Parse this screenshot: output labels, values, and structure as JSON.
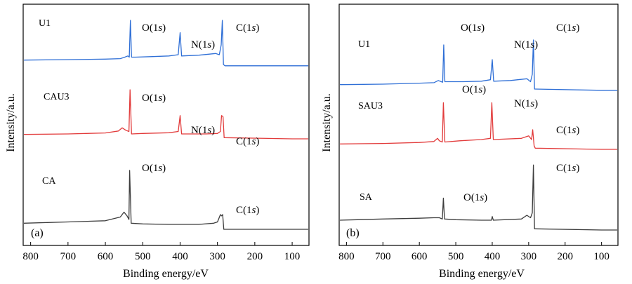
{
  "figure": {
    "ylabel": "Intensity/a.u.",
    "xlabel": "Binding energy/eV"
  },
  "chart_data": [
    {
      "type": "line",
      "panel": "(a)",
      "xlabel": "Binding energy/eV",
      "ylabel": "Intensity/a.u.",
      "xlim": [
        820,
        55
      ],
      "x_reversed": true,
      "xticks": [
        800,
        700,
        600,
        500,
        400,
        300,
        200,
        100
      ],
      "yticks": [],
      "grid": false,
      "series": [
        {
          "name": "U1",
          "color": "#2f6fd6",
          "baseline": 0.64,
          "points": [
            [
              820,
              0.18
            ],
            [
              700,
              0.2
            ],
            [
              600,
              0.22
            ],
            [
              560,
              0.24
            ],
            [
              548,
              0.3
            ],
            [
              540,
              0.35
            ],
            [
              536,
              0.3
            ],
            [
              533,
              1.8
            ],
            [
              530,
              0.3
            ],
            [
              520,
              0.3
            ],
            [
              480,
              0.32
            ],
            [
              430,
              0.35
            ],
            [
              405,
              0.4
            ],
            [
              400,
              1.3
            ],
            [
              396,
              0.35
            ],
            [
              350,
              0.38
            ],
            [
              305,
              0.45
            ],
            [
              295,
              0.4
            ],
            [
              290,
              0.8
            ],
            [
              287,
              1.8
            ],
            [
              284,
              0.0
            ],
            [
              280,
              -0.05
            ],
            [
              100,
              -0.05
            ],
            [
              55,
              -0.05
            ]
          ],
          "labels": [
            {
              "text": "O(1s)",
              "x": 533
            },
            {
              "text": "N(1s)",
              "x": 400
            },
            {
              "text": "C(1s)",
              "x": 287
            }
          ]
        },
        {
          "name": "CAU3",
          "color": "#e23b3b",
          "baseline": 0.34,
          "points": [
            [
              820,
              0.18
            ],
            [
              700,
              0.2
            ],
            [
              600,
              0.24
            ],
            [
              565,
              0.32
            ],
            [
              555,
              0.45
            ],
            [
              545,
              0.35
            ],
            [
              537,
              0.3
            ],
            [
              534,
              2.0
            ],
            [
              530,
              0.2
            ],
            [
              500,
              0.22
            ],
            [
              430,
              0.25
            ],
            [
              405,
              0.3
            ],
            [
              400,
              0.95
            ],
            [
              396,
              0.2
            ],
            [
              330,
              0.2
            ],
            [
              300,
              0.22
            ],
            [
              292,
              0.3
            ],
            [
              289,
              0.95
            ],
            [
              285,
              0.9
            ],
            [
              282,
              0.05
            ],
            [
              100,
              0.0
            ],
            [
              55,
              0.0
            ]
          ],
          "labels": [
            {
              "text": "O(1s)",
              "x": 534
            },
            {
              "text": "N(1s)",
              "x": 400
            },
            {
              "text": "C(1s)",
              "x": 287
            }
          ]
        },
        {
          "name": "CA",
          "color": "#3c3c3c",
          "baseline": 0.0,
          "points": [
            [
              820,
              0.25
            ],
            [
              700,
              0.3
            ],
            [
              600,
              0.35
            ],
            [
              560,
              0.5
            ],
            [
              550,
              0.7
            ],
            [
              542,
              0.55
            ],
            [
              537,
              0.4
            ],
            [
              535,
              2.4
            ],
            [
              531,
              0.25
            ],
            [
              500,
              0.22
            ],
            [
              430,
              0.2
            ],
            [
              350,
              0.2
            ],
            [
              310,
              0.25
            ],
            [
              300,
              0.3
            ],
            [
              292,
              0.6
            ],
            [
              289,
              0.55
            ],
            [
              286,
              0.6
            ],
            [
              283,
              0.0
            ],
            [
              100,
              0.0
            ],
            [
              55,
              0.0
            ]
          ],
          "labels": [
            {
              "text": "O(1s)",
              "x": 535
            },
            {
              "text": "C(1s)",
              "x": 287
            }
          ]
        }
      ]
    },
    {
      "type": "line",
      "panel": "(b)",
      "xlabel": "Binding energy/eV",
      "ylabel": "Intensity/a.u.",
      "xlim": [
        820,
        55
      ],
      "x_reversed": true,
      "xticks": [
        800,
        700,
        600,
        500,
        400,
        300,
        200,
        100
      ],
      "yticks": [],
      "grid": false,
      "series": [
        {
          "name": "U1",
          "color": "#2f6fd6",
          "baseline": 0.64,
          "points": [
            [
              820,
              0.18
            ],
            [
              700,
              0.2
            ],
            [
              600,
              0.24
            ],
            [
              560,
              0.26
            ],
            [
              548,
              0.35
            ],
            [
              540,
              0.3
            ],
            [
              536,
              0.28
            ],
            [
              533,
              1.8
            ],
            [
              530,
              0.3
            ],
            [
              480,
              0.3
            ],
            [
              430,
              0.32
            ],
            [
              405,
              0.38
            ],
            [
              400,
              1.2
            ],
            [
              396,
              0.32
            ],
            [
              350,
              0.35
            ],
            [
              305,
              0.42
            ],
            [
              295,
              0.3
            ],
            [
              290,
              0.6
            ],
            [
              287,
              2.0
            ],
            [
              284,
              0.0
            ],
            [
              100,
              -0.05
            ],
            [
              55,
              -0.05
            ]
          ],
          "labels": [
            {
              "text": "O(1s)",
              "x": 533
            },
            {
              "text": "N(1s)",
              "x": 400
            },
            {
              "text": "C(1s)",
              "x": 287
            }
          ]
        },
        {
          "name": "SAU3",
          "color": "#e23b3b",
          "baseline": 0.32,
          "points": [
            [
              820,
              0.22
            ],
            [
              700,
              0.24
            ],
            [
              600,
              0.28
            ],
            [
              560,
              0.32
            ],
            [
              550,
              0.45
            ],
            [
              545,
              0.35
            ],
            [
              537,
              0.3
            ],
            [
              534,
              1.9
            ],
            [
              530,
              0.3
            ],
            [
              490,
              0.35
            ],
            [
              430,
              0.4
            ],
            [
              405,
              0.45
            ],
            [
              401,
              1.9
            ],
            [
              397,
              0.4
            ],
            [
              320,
              0.45
            ],
            [
              300,
              0.55
            ],
            [
              292,
              0.4
            ],
            [
              289,
              0.8
            ],
            [
              285,
              0.15
            ],
            [
              282,
              0.05
            ],
            [
              100,
              0.0
            ],
            [
              55,
              0.0
            ]
          ],
          "labels": [
            {
              "text": "O(1s)",
              "x": 534
            },
            {
              "text": "N(1s)",
              "x": 401
            },
            {
              "text": "C(1s)",
              "x": 287
            }
          ]
        },
        {
          "name": "SA",
          "color": "#3c3c3c",
          "baseline": 0.0,
          "points": [
            [
              820,
              0.4
            ],
            [
              700,
              0.45
            ],
            [
              600,
              0.48
            ],
            [
              560,
              0.5
            ],
            [
              545,
              0.5
            ],
            [
              537,
              0.45
            ],
            [
              534,
              1.3
            ],
            [
              531,
              0.45
            ],
            [
              500,
              0.42
            ],
            [
              430,
              0.4
            ],
            [
              402,
              0.4
            ],
            [
              400,
              0.55
            ],
            [
              397,
              0.4
            ],
            [
              320,
              0.45
            ],
            [
              305,
              0.6
            ],
            [
              295,
              0.5
            ],
            [
              290,
              0.7
            ],
            [
              287,
              2.65
            ],
            [
              284,
              0.05
            ],
            [
              100,
              0.0
            ],
            [
              55,
              0.0
            ]
          ],
          "labels": [
            {
              "text": "O(1s)",
              "x": 534
            },
            {
              "text": "C(1s)",
              "x": 287
            }
          ]
        }
      ]
    }
  ]
}
